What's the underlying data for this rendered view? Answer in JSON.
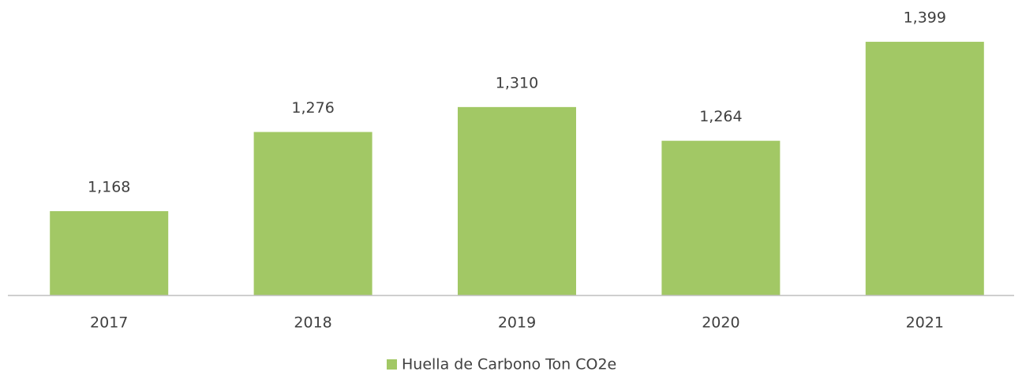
{
  "chart_data": {
    "type": "bar",
    "categories": [
      "2017",
      "2018",
      "2019",
      "2020",
      "2021"
    ],
    "series": [
      {
        "name": "Huella de Carbono Ton CO2e",
        "color": "#a2c865",
        "values": [
          1168,
          1276,
          1310,
          1264,
          1399
        ],
        "value_labels": [
          "1,168",
          "1,276",
          "1,310",
          "1,264",
          "1,399"
        ]
      }
    ],
    "ylim": [
      1053,
      1456
    ]
  }
}
